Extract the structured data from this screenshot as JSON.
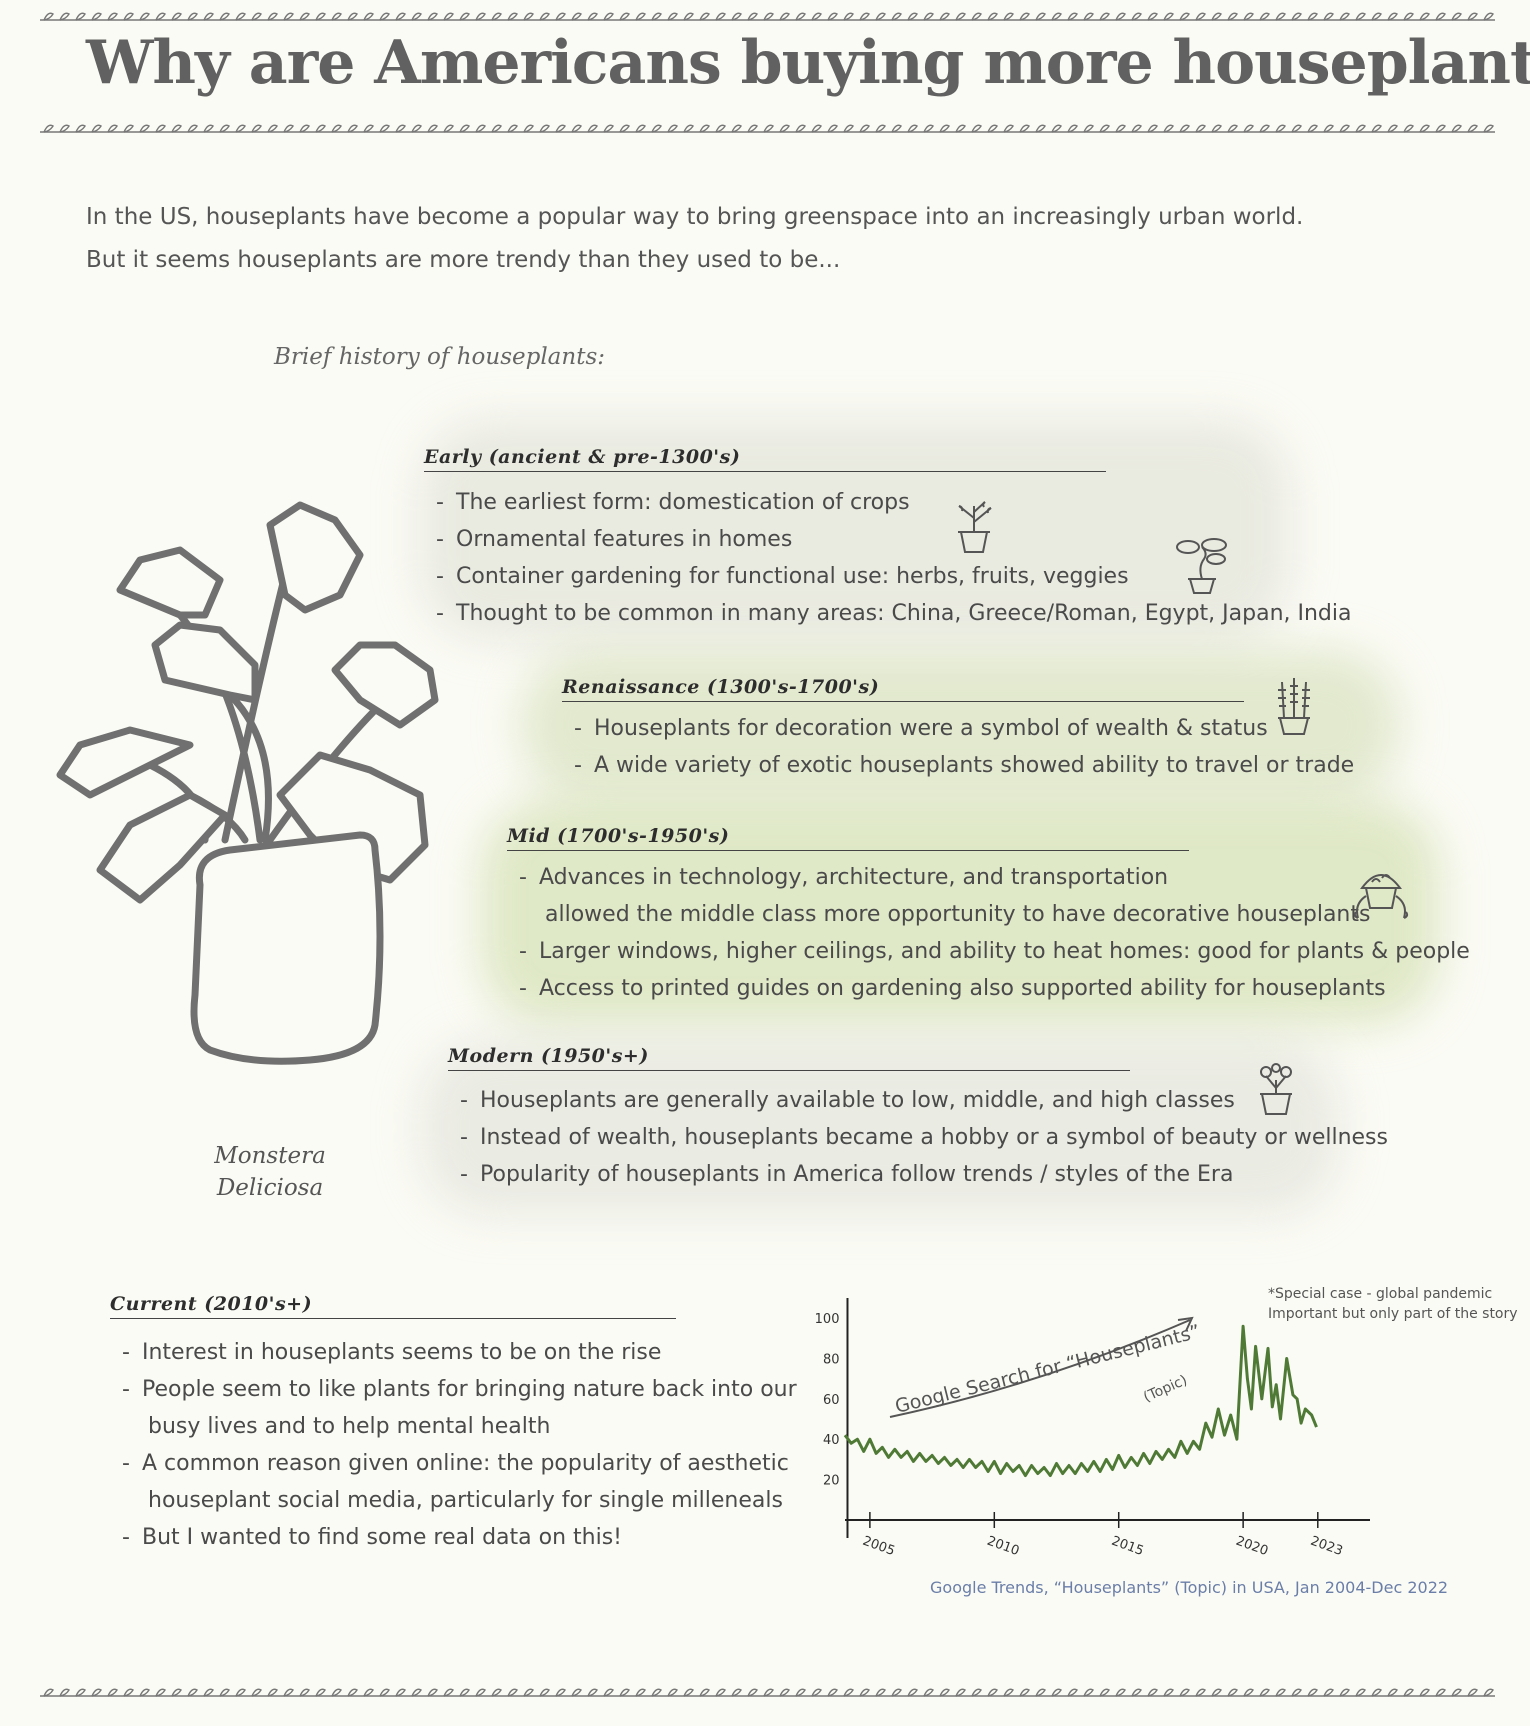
{
  "title": "Why are Americans buying more houseplants?",
  "intro": {
    "line1": "In the US, houseplants have become a popular way to bring greenspace into an increasingly urban world.",
    "line2": "But it seems houseplants are more trendy than they used to be..."
  },
  "history_heading": "Brief history of houseplants:",
  "plant_caption": {
    "line1": "Monstera",
    "line2": "Deliciosa"
  },
  "eras": {
    "early": {
      "name": "Early",
      "period": "(ancient & pre-1300's)",
      "bullets": [
        "The earliest form: domestication of crops",
        "Ornamental features in homes",
        "Container gardening for functional use: herbs, fruits, veggies",
        "Thought to be common in many areas: China, Greece/Roman, Egypt, Japan, India"
      ]
    },
    "renaissance": {
      "name": "Renaissance",
      "period": "(1300's-1700's)",
      "bullets": [
        "Houseplants for decoration were a symbol of wealth & status",
        "A wide variety of exotic houseplants showed ability to travel or trade"
      ]
    },
    "mid": {
      "name": "Mid",
      "period": "(1700's-1950's)",
      "bullets": [
        "Advances in technology, architecture, and transportation",
        "allowed the middle class more opportunity to have decorative houseplants",
        "Larger windows, higher ceilings, and ability to heat homes: good for plants & people",
        "Access to printed guides on gardening also supported ability for houseplants"
      ]
    },
    "modern": {
      "name": "Modern",
      "period": "(1950's+)",
      "bullets": [
        "Houseplants are generally available to low, middle, and high classes",
        "Instead of wealth, houseplants became a hobby or a symbol of beauty or wellness",
        "Popularity of houseplants in America follow trends / styles of the Era"
      ]
    },
    "current": {
      "name": "Current",
      "period": "(2010's+)",
      "bullets": [
        "Interest in houseplants seems to be on the rise",
        "People seem to like plants for bringing nature back into our",
        "busy lives and to help mental health",
        "A common reason given online: the popularity of aesthetic",
        "houseplant social media, particularly for single milleneals",
        "But I wanted to find some real data on this!"
      ]
    }
  },
  "chart_note": {
    "line1": "*Special case - global pandemic",
    "line2": "Important but only part of the story"
  },
  "chart_source": "Google Trends, “Houseplants” (Topic) in USA, Jan 2004-Dec 2022",
  "chart_data": {
    "type": "line",
    "title": "Google Search for “Houseplants”",
    "subtitle": "(Topic)",
    "x_ticks": [
      "2005",
      "2010",
      "2015",
      "2020",
      "2023"
    ],
    "y_ticks": [
      "100",
      "80",
      "60",
      "40",
      "20"
    ],
    "xlim": [
      2004,
      2025.5
    ],
    "ylim": [
      0,
      105
    ],
    "line_color": "#4f7a36",
    "series": [
      {
        "x": [
          2004.0,
          2004.25,
          2004.5,
          2004.75,
          2005.0,
          2005.25,
          2005.5,
          2005.75,
          2006.0,
          2006.25,
          2006.5,
          2006.75,
          2007.0,
          2007.25,
          2007.5,
          2007.75,
          2008.0,
          2008.25,
          2008.5,
          2008.75,
          2009.0,
          2009.25,
          2009.5,
          2009.75,
          2010.0,
          2010.25,
          2010.5,
          2010.75,
          2011.0,
          2011.25,
          2011.5,
          2011.75,
          2012.0,
          2012.25,
          2012.5,
          2012.75,
          2013.0,
          2013.25,
          2013.5,
          2013.75,
          2014.0,
          2014.25,
          2014.5,
          2014.75,
          2015.0,
          2015.25,
          2015.5,
          2015.75,
          2016.0,
          2016.25,
          2016.5,
          2016.75,
          2017.0,
          2017.25,
          2017.5,
          2017.75,
          2018.0,
          2018.25,
          2018.5,
          2018.75,
          2019.0,
          2019.25,
          2019.5,
          2019.75,
          2020.0,
          2020.17,
          2020.33,
          2020.5,
          2020.75,
          2021.0,
          2021.17,
          2021.33,
          2021.5,
          2021.75,
          2022.0,
          2022.17,
          2022.33,
          2022.5,
          2022.75,
          2022.95
        ],
        "y": [
          42,
          38,
          40,
          34,
          40,
          33,
          36,
          31,
          35,
          31,
          34,
          29,
          33,
          29,
          32,
          28,
          31,
          27,
          30,
          26,
          30,
          26,
          29,
          24,
          29,
          23,
          28,
          24,
          27,
          22,
          27,
          23,
          26,
          22,
          28,
          23,
          27,
          23,
          28,
          24,
          29,
          24,
          30,
          25,
          32,
          26,
          31,
          27,
          33,
          28,
          34,
          30,
          35,
          31,
          39,
          33,
          39,
          35,
          48,
          41,
          55,
          42,
          52,
          40,
          96,
          70,
          55,
          86,
          60,
          85,
          56,
          67,
          50,
          80,
          62,
          60,
          48,
          55,
          52,
          46
        ]
      }
    ]
  }
}
